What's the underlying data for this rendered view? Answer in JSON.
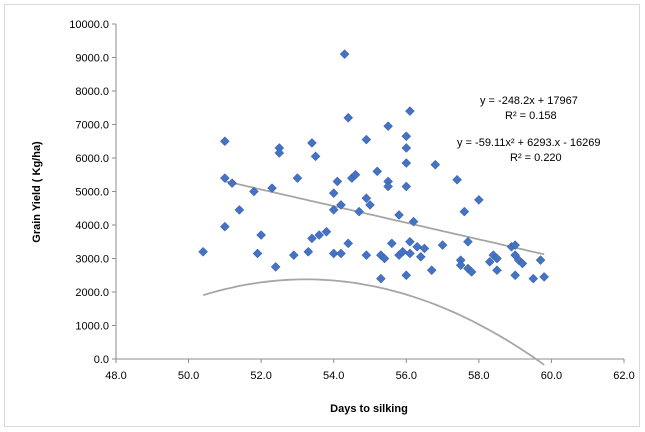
{
  "chart_data": {
    "type": "scatter",
    "xlabel": "Days to silking",
    "ylabel": "Grain Yield ( Kg/ha)",
    "xlim": [
      48.0,
      62.0
    ],
    "ylim": [
      0.0,
      10000.0
    ],
    "x_ticks": [
      "48.0",
      "50.0",
      "52.0",
      "54.0",
      "56.0",
      "58.0",
      "60.0",
      "62.0"
    ],
    "y_ticks": [
      "0.0",
      "1000.0",
      "2000.0",
      "3000.0",
      "4000.0",
      "5000.0",
      "6000.0",
      "7000.0",
      "8000.0",
      "9000.0",
      "10000.0"
    ],
    "grid": false,
    "marker_color": "#4472c4",
    "trend_color": "#a6a6a6",
    "points": [
      {
        "x": 50.4,
        "y": 3200
      },
      {
        "x": 51.0,
        "y": 6500
      },
      {
        "x": 51.0,
        "y": 5400
      },
      {
        "x": 51.0,
        "y": 3950
      },
      {
        "x": 51.2,
        "y": 5250
      },
      {
        "x": 51.4,
        "y": 4450
      },
      {
        "x": 51.8,
        "y": 5000
      },
      {
        "x": 51.9,
        "y": 3150
      },
      {
        "x": 52.0,
        "y": 3700
      },
      {
        "x": 52.3,
        "y": 5100
      },
      {
        "x": 52.4,
        "y": 2750
      },
      {
        "x": 52.5,
        "y": 6300
      },
      {
        "x": 52.5,
        "y": 6150
      },
      {
        "x": 52.9,
        "y": 3100
      },
      {
        "x": 53.0,
        "y": 5400
      },
      {
        "x": 53.3,
        "y": 3200
      },
      {
        "x": 53.4,
        "y": 6450
      },
      {
        "x": 53.4,
        "y": 3600
      },
      {
        "x": 53.5,
        "y": 6050
      },
      {
        "x": 53.6,
        "y": 3700
      },
      {
        "x": 53.8,
        "y": 3800
      },
      {
        "x": 54.0,
        "y": 4950
      },
      {
        "x": 54.0,
        "y": 4450
      },
      {
        "x": 54.0,
        "y": 3150
      },
      {
        "x": 54.1,
        "y": 5300
      },
      {
        "x": 54.2,
        "y": 3150
      },
      {
        "x": 54.2,
        "y": 4600
      },
      {
        "x": 54.3,
        "y": 9100
      },
      {
        "x": 54.4,
        "y": 7200
      },
      {
        "x": 54.4,
        "y": 3450
      },
      {
        "x": 54.5,
        "y": 5400
      },
      {
        "x": 54.6,
        "y": 5500
      },
      {
        "x": 54.7,
        "y": 4400
      },
      {
        "x": 54.9,
        "y": 6550
      },
      {
        "x": 54.9,
        "y": 4800
      },
      {
        "x": 54.9,
        "y": 3100
      },
      {
        "x": 55.0,
        "y": 4600
      },
      {
        "x": 55.2,
        "y": 5600
      },
      {
        "x": 55.3,
        "y": 3100
      },
      {
        "x": 55.3,
        "y": 2400
      },
      {
        "x": 55.4,
        "y": 3000
      },
      {
        "x": 55.5,
        "y": 6950
      },
      {
        "x": 55.5,
        "y": 5300
      },
      {
        "x": 55.5,
        "y": 5150
      },
      {
        "x": 55.6,
        "y": 3450
      },
      {
        "x": 55.8,
        "y": 4300
      },
      {
        "x": 55.8,
        "y": 3100
      },
      {
        "x": 55.9,
        "y": 3200
      },
      {
        "x": 56.0,
        "y": 6650
      },
      {
        "x": 56.0,
        "y": 6300
      },
      {
        "x": 56.0,
        "y": 5850
      },
      {
        "x": 56.0,
        "y": 5150
      },
      {
        "x": 56.0,
        "y": 2500
      },
      {
        "x": 56.1,
        "y": 7400
      },
      {
        "x": 56.1,
        "y": 3500
      },
      {
        "x": 56.1,
        "y": 3150
      },
      {
        "x": 56.2,
        "y": 4100
      },
      {
        "x": 56.3,
        "y": 3350
      },
      {
        "x": 56.4,
        "y": 3050
      },
      {
        "x": 56.5,
        "y": 3300
      },
      {
        "x": 56.7,
        "y": 2650
      },
      {
        "x": 56.8,
        "y": 5800
      },
      {
        "x": 57.0,
        "y": 3400
      },
      {
        "x": 57.4,
        "y": 5350
      },
      {
        "x": 57.5,
        "y": 2950
      },
      {
        "x": 57.5,
        "y": 2800
      },
      {
        "x": 57.6,
        "y": 4400
      },
      {
        "x": 57.7,
        "y": 3500
      },
      {
        "x": 57.7,
        "y": 2700
      },
      {
        "x": 57.8,
        "y": 2600
      },
      {
        "x": 58.0,
        "y": 4750
      },
      {
        "x": 58.3,
        "y": 2900
      },
      {
        "x": 58.4,
        "y": 3100
      },
      {
        "x": 58.5,
        "y": 3000
      },
      {
        "x": 58.5,
        "y": 2650
      },
      {
        "x": 58.9,
        "y": 3350
      },
      {
        "x": 59.0,
        "y": 3400
      },
      {
        "x": 59.0,
        "y": 3100
      },
      {
        "x": 59.0,
        "y": 2500
      },
      {
        "x": 59.1,
        "y": 2950
      },
      {
        "x": 59.2,
        "y": 2850
      },
      {
        "x": 59.5,
        "y": 2400
      },
      {
        "x": 59.7,
        "y": 2950
      },
      {
        "x": 59.8,
        "y": 2450
      }
    ],
    "trendlines": [
      {
        "kind": "linear",
        "x_range": [
          51.0,
          59.8
        ],
        "equation": "y = -248.2x + 17967",
        "r2": "R² = 0.158"
      },
      {
        "kind": "polynomial",
        "x_range": [
          50.4,
          59.8
        ],
        "equation": "y = -59.11x² + 6293.x - 16269",
        "r2": "R² = 0.220"
      }
    ]
  }
}
